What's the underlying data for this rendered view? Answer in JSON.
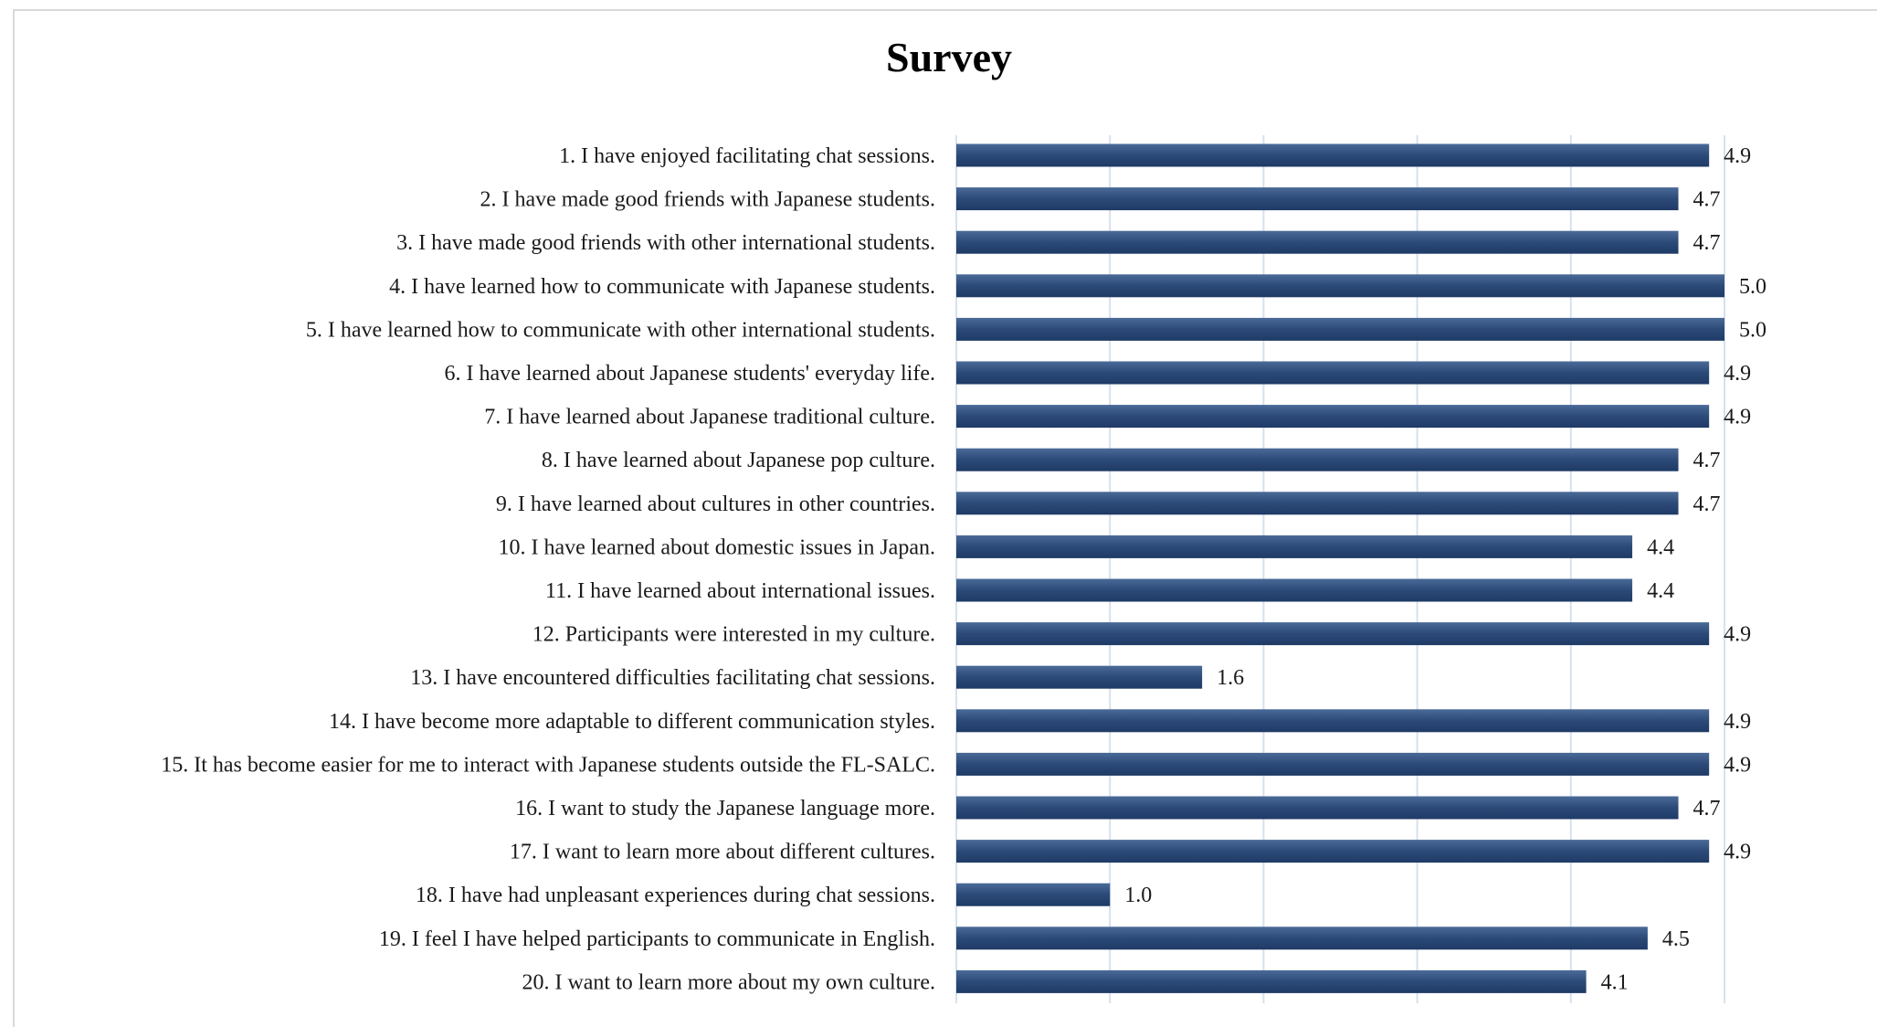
{
  "chart_data": {
    "type": "bar",
    "orientation": "horizontal",
    "title": "Survey",
    "xlabel": "",
    "ylabel": "",
    "xlim": [
      0,
      5
    ],
    "grid": true,
    "legend": "none",
    "bar_color": "#2c4a78",
    "bar_color_dark": "#1f3a66",
    "bar_color_light": "#4a6a98",
    "grid_color": "#d5e1ee",
    "categories": [
      "1. I have enjoyed facilitating chat sessions.",
      "2. I have made good friends with Japanese students.",
      "3. I have made good friends with other international students.",
      "4. I have learned how to communicate with Japanese students.",
      "5. I have learned how to communicate with other international students.",
      "6. I have learned about Japanese students' everyday life.",
      "7. I have learned about Japanese traditional culture.",
      "8. I have learned about Japanese pop culture.",
      "9. I have learned about cultures in other countries.",
      "10. I have learned about domestic issues in Japan.",
      "11. I have learned about international issues.",
      "12. Participants were interested in my culture.",
      "13. I have encountered difficulties facilitating chat sessions.",
      "14. I have become more adaptable to different communication styles.",
      "15. It has become easier for me to interact with Japanese students outside the FL-SALC.",
      "16. I want to study the Japanese language more.",
      "17. I want to learn more about different cultures.",
      "18. I have had unpleasant experiences during chat sessions.",
      "19. I feel I have helped participants to communicate in English.",
      "20. I want to learn more about my own culture."
    ],
    "values": [
      4.9,
      4.7,
      4.7,
      5.0,
      5.0,
      4.9,
      4.9,
      4.7,
      4.7,
      4.4,
      4.4,
      4.9,
      1.6,
      4.9,
      4.9,
      4.7,
      4.9,
      1.0,
      4.5,
      4.1
    ],
    "value_labels": [
      "4.9",
      "4.7",
      "4.7",
      "5.0",
      "5.0",
      "4.9",
      "4.9",
      "4.7",
      "4.7",
      "4.4",
      "4.4",
      "4.9",
      "1.6",
      "4.9",
      "4.9",
      "4.7",
      "4.9",
      "1.0",
      "4.5",
      "4.1"
    ]
  }
}
